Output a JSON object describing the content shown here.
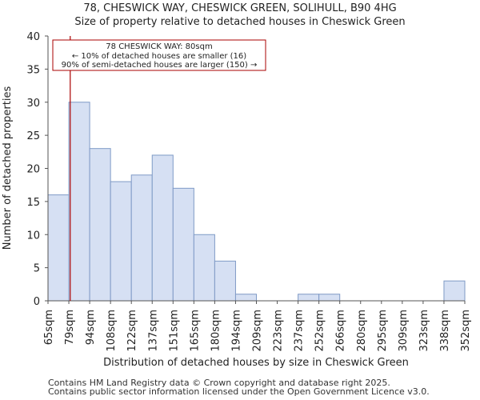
{
  "chart_data": {
    "type": "bar",
    "title": "78, CHESWICK WAY, CHESWICK GREEN, SOLIHULL, B90 4HG",
    "subtitle": "Size of property relative to detached houses in Cheswick Green",
    "xlabel": "Distribution of detached houses by size in Cheswick Green",
    "ylabel": "Number of detached properties",
    "ylim": [
      0,
      40
    ],
    "yticks": [
      0,
      5,
      10,
      15,
      20,
      25,
      30,
      35,
      40
    ],
    "bin_edges": [
      "65sqm",
      "79sqm",
      "94sqm",
      "108sqm",
      "122sqm",
      "137sqm",
      "151sqm",
      "165sqm",
      "180sqm",
      "194sqm",
      "209sqm",
      "223sqm",
      "237sqm",
      "252sqm",
      "266sqm",
      "280sqm",
      "295sqm",
      "309sqm",
      "323sqm",
      "338sqm",
      "352sqm"
    ],
    "values": [
      16,
      30,
      23,
      18,
      19,
      22,
      17,
      10,
      6,
      1,
      0,
      0,
      1,
      1,
      0,
      0,
      0,
      0,
      0,
      3
    ],
    "bar_color": "#d6e0f3",
    "bar_edge_color": "#7f9ac6",
    "property_marker": {
      "value_sqm": 80,
      "color": "#aa0000"
    },
    "annotation": {
      "lines": [
        "78 CHESWICK WAY: 80sqm",
        "← 10% of detached houses are smaller (16)",
        "90% of semi-detached houses are larger (150) →"
      ],
      "border_color": "#aa0000"
    }
  },
  "footer": {
    "line1": "Contains HM Land Registry data © Crown copyright and database right 2025.",
    "line2": "Contains public sector information licensed under the Open Government Licence v3.0."
  }
}
